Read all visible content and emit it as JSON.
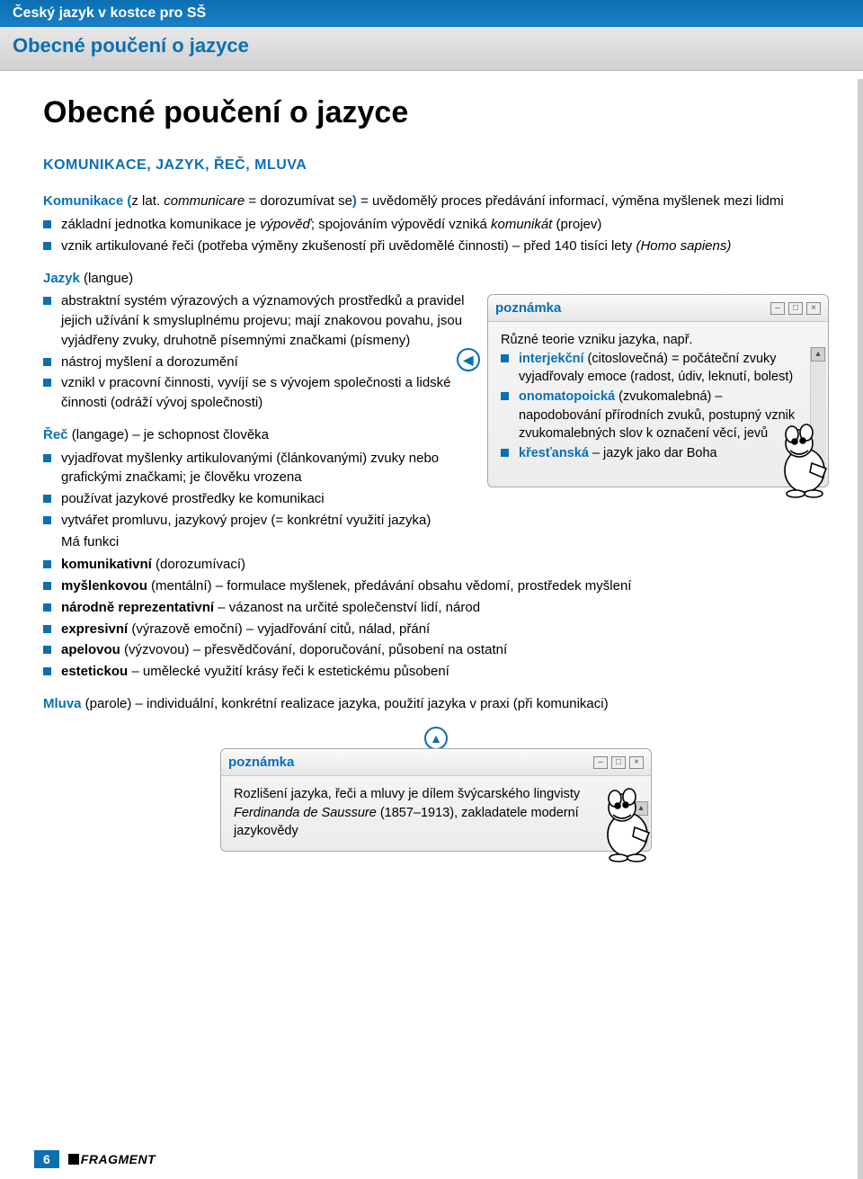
{
  "banner": {
    "bookTitle": "Český jazyk v kostce pro SŠ",
    "chapter": "Obecné poučení o jazyce"
  },
  "title": "Obecné poučení o jazyce",
  "sectionHeading": "KOMUNIKACE, JAZYK, ŘEČ, MLUVA",
  "komunikace": {
    "termHtml": "<span class='term'>Komunikace <span class='paren'>(</span></span>z lat. <em class='it'>communicare</em> = dorozumívat se<span class='term'><span class='paren'>)</span></span> = uvědomělý proces předávání informací, výměna myšlenek mezi lidmi",
    "bullets": [
      "základní jednotka komunikace je <em class='it'>výpověď</em>; spojováním výpovědí vzniká <em class='it'>komunikát</em> (projev)",
      "vznik artikulované řeči (potřeba výměny zkušeností při uvědomělé činnosti) – před 140 tisíci lety <em class='it'>(Homo sapiens)</em>"
    ]
  },
  "jazyk": {
    "heading": "Jazyk",
    "headingAfter": " (langue)",
    "bullets": [
      "abstraktní systém výrazových a významových prostředků a pravidel jejich užívání k smysluplnému projevu; mají znakovou povahu, jsou vyjádřeny zvuky, druhotně písemnými značkami (písmeny)",
      "nástroj myšlení a dorozumění",
      "vznikl v pracovní činnosti, vyvíjí se s vývojem společnosti a lidské činnosti (odráží vývoj společnosti)"
    ]
  },
  "rec": {
    "heading": "Řeč",
    "headingAfter": " (langage) – je schopnost člověka",
    "bullets1": [
      "vyjadřovat myšlenky artikulovanými (článkovanými) zvuky nebo grafickými značkami; je člověku vrozena",
      "používat jazykové prostředky ke komunikaci",
      "vytvářet promluvu, jazykový projev (= konkrétní využití jazyka)"
    ],
    "maFunkci": "Má funkci",
    "bullets2": [
      "<b>komunikativní</b> (dorozumívací)",
      "<b>myšlenkovou</b> (mentální) – formulace myšlenek, předávání obsahu vědomí, prostředek myšlení",
      "<b>národně reprezentativní</b> – vázanost na určité společenství lidí, národ",
      "<b>expresivní</b> (výrazově emoční) – vyjadřování citů, nálad, přání",
      "<b>apelovou</b> (výzvovou) – přesvědčování, doporučování, působení na ostatní",
      "<b>estetickou</b> – umělecké využití krásy řeči k estetickému působení"
    ]
  },
  "mluva": {
    "html": "<span class='term'>Mluva</span> (parole) – individuální, konkrétní realizace jazyka, použití jazyka v praxi (při komunikaci)"
  },
  "note1": {
    "title": "poznámka",
    "intro": "Různé teorie vzniku jazyka, např.",
    "bullets": [
      "<span class='term'>interjekční</span> (citoslovečná) = počáteční zvuky vyjadřovaly emoce (radost, údiv, leknutí, bolest)",
      "<span class='term'>onomatopoická</span> (zvukomalebná) – napodobování přírodních zvuků, postupný vznik zvukomalebných slov k označení věcí, jevů",
      "<span class='term'>křesťanská</span> – jazyk jako dar Boha"
    ]
  },
  "note2": {
    "title": "poznámka",
    "body": "Rozlišení jazyka, řeči a mluvy je dílem švýcarského lingvisty <em class='it'>Ferdinanda de Saussure</em> (1857–1913), zakladatele moderní jazykovědy"
  },
  "footer": {
    "page": "6",
    "publisher": "FRAGMENT"
  }
}
